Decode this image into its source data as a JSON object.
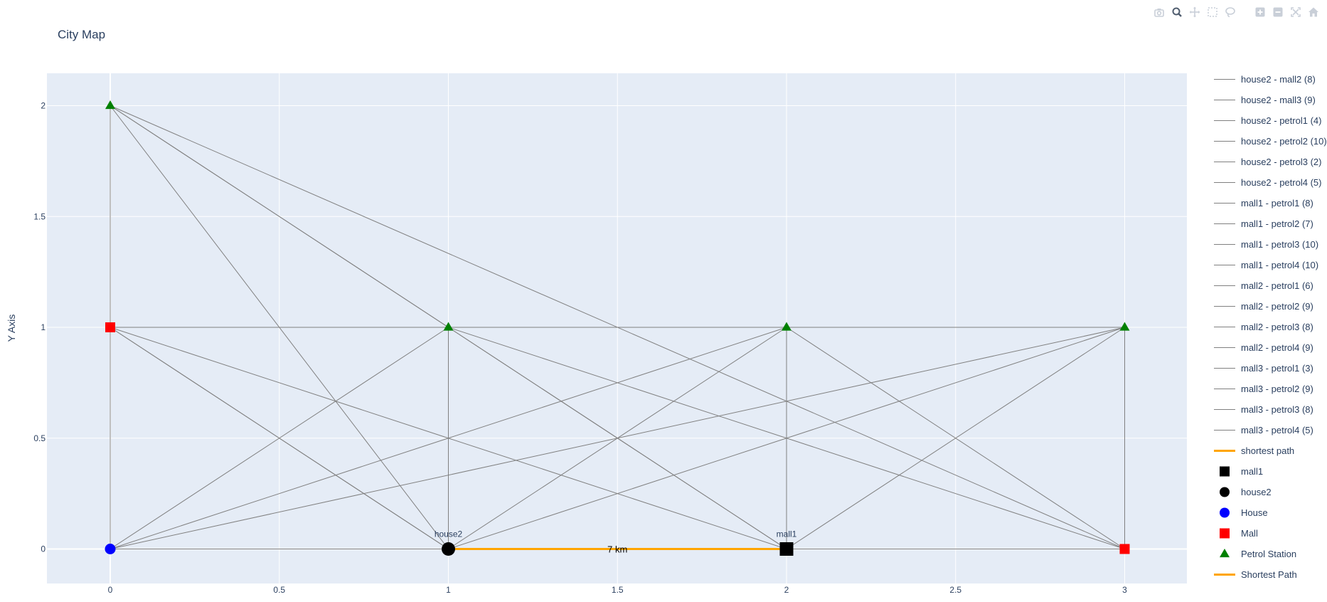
{
  "title": "City Map",
  "chart_data": {
    "type": "scatter",
    "title": "City Map",
    "xlabel": "",
    "ylabel": "Y Axis",
    "xlim": [
      -0.18,
      3.18
    ],
    "ylim": [
      -0.155,
      2.145
    ],
    "x_ticks": [
      0,
      0.5,
      1,
      1.5,
      2,
      2.5,
      3
    ],
    "x_tick_labels": [
      "0",
      "0.5",
      "1",
      "1.5",
      "2",
      "2.5",
      "3"
    ],
    "y_ticks": [
      0,
      0.5,
      1,
      1.5,
      2
    ],
    "y_tick_labels": [
      "0",
      "0.5",
      "1",
      "1.5",
      "2"
    ],
    "grid": true,
    "legend_position": "right",
    "background_color": "#e5ecf6",
    "edge_color": "#808080",
    "edges": [
      {
        "x": [
          1,
          2
        ],
        "y": [
          0,
          0
        ],
        "label": "house2 - mall2 (8)"
      },
      {
        "x": [
          1,
          0
        ],
        "y": [
          0,
          1
        ],
        "label": "house2 - mall3 (9)"
      },
      {
        "x": [
          1,
          0
        ],
        "y": [
          0,
          2
        ],
        "label": "house2 - petrol1 (4)"
      },
      {
        "x": [
          1,
          1
        ],
        "y": [
          0,
          1
        ],
        "label": "house2 - petrol2 (10)"
      },
      {
        "x": [
          1,
          2
        ],
        "y": [
          0,
          1
        ],
        "label": "house2 - petrol3 (2)"
      },
      {
        "x": [
          1,
          3
        ],
        "y": [
          0,
          1
        ],
        "label": "house2 - petrol4 (5)"
      },
      {
        "x": [
          2,
          0
        ],
        "y": [
          0,
          2
        ],
        "label": "mall1 - petrol1 (8)"
      },
      {
        "x": [
          2,
          1
        ],
        "y": [
          0,
          1
        ],
        "label": "mall1 - petrol2 (7)"
      },
      {
        "x": [
          2,
          2
        ],
        "y": [
          0,
          1
        ],
        "label": "mall1 - petrol3 (10)"
      },
      {
        "x": [
          2,
          3
        ],
        "y": [
          0,
          1
        ],
        "label": "mall1 - petrol4 (10)"
      },
      {
        "x": [
          3,
          0
        ],
        "y": [
          0,
          2
        ],
        "label": "mall2 - petrol1 (6)"
      },
      {
        "x": [
          3,
          1
        ],
        "y": [
          0,
          1
        ],
        "label": "mall2 - petrol2 (9)"
      },
      {
        "x": [
          3,
          2
        ],
        "y": [
          0,
          1
        ],
        "label": "mall2 - petrol3 (8)"
      },
      {
        "x": [
          3,
          3
        ],
        "y": [
          0,
          1
        ],
        "label": "mall2 - petrol4 (9)"
      },
      {
        "x": [
          0,
          0
        ],
        "y": [
          1,
          2
        ],
        "label": "mall3 - petrol1 (3)"
      },
      {
        "x": [
          0,
          1
        ],
        "y": [
          1,
          1
        ],
        "label": "mall3 - petrol2 (9)"
      },
      {
        "x": [
          0,
          2
        ],
        "y": [
          1,
          1
        ],
        "label": "mall3 - petrol3 (8)"
      },
      {
        "x": [
          0,
          3
        ],
        "y": [
          1,
          1
        ],
        "label": "mall3 - petrol4 (5)"
      }
    ],
    "extra_edges": [
      {
        "x": [
          0,
          1
        ],
        "y": [
          0,
          0
        ]
      },
      {
        "x": [
          2,
          3
        ],
        "y": [
          0,
          0
        ]
      },
      {
        "x": [
          0,
          1
        ],
        "y": [
          0,
          1
        ]
      },
      {
        "x": [
          0,
          2
        ],
        "y": [
          0,
          1
        ]
      },
      {
        "x": [
          0,
          3
        ],
        "y": [
          0,
          1
        ]
      },
      {
        "x": [
          0,
          0
        ],
        "y": [
          0,
          1
        ]
      },
      {
        "x": [
          1,
          0
        ],
        "y": [
          1,
          2
        ]
      },
      {
        "x": [
          1,
          0
        ],
        "y": [
          0,
          1
        ]
      },
      {
        "x": [
          0,
          2
        ],
        "y": [
          1,
          0
        ]
      }
    ],
    "shortest_path": {
      "x": [
        1,
        2
      ],
      "y": [
        0,
        0
      ],
      "color": "#FFA500",
      "label": "shortest path",
      "annotation": "7 km",
      "annotation_x": 1.5,
      "annotation_y": 0
    },
    "highlight_nodes": [
      {
        "name": "mall1",
        "x": 2,
        "y": 0,
        "symbol": "square",
        "color": "#000000",
        "label": "mall1"
      },
      {
        "name": "house2",
        "x": 1,
        "y": 0,
        "symbol": "circle",
        "color": "#000000",
        "label": "house2"
      }
    ],
    "node_groups": [
      {
        "name": "House",
        "symbol": "circle",
        "color": "#0000FF",
        "points": [
          [
            0,
            0
          ]
        ]
      },
      {
        "name": "Mall",
        "symbol": "square",
        "color": "#FF0000",
        "points": [
          [
            3,
            0
          ],
          [
            0,
            1
          ]
        ]
      },
      {
        "name": "Petrol Station",
        "symbol": "triangle-up",
        "color": "#008000",
        "points": [
          [
            0,
            2
          ],
          [
            1,
            1
          ],
          [
            2,
            1
          ],
          [
            3,
            1
          ]
        ]
      }
    ],
    "legend": [
      {
        "label": "house2 - mall2 (8)",
        "kind": "line",
        "color": "#808080"
      },
      {
        "label": "house2 - mall3 (9)",
        "kind": "line",
        "color": "#808080"
      },
      {
        "label": "house2 - petrol1 (4)",
        "kind": "line",
        "color": "#808080"
      },
      {
        "label": "house2 - petrol2 (10)",
        "kind": "line",
        "color": "#808080"
      },
      {
        "label": "house2 - petrol3 (2)",
        "kind": "line",
        "color": "#808080"
      },
      {
        "label": "house2 - petrol4 (5)",
        "kind": "line",
        "color": "#808080"
      },
      {
        "label": "mall1 - petrol1 (8)",
        "kind": "line",
        "color": "#808080"
      },
      {
        "label": "mall1 - petrol2 (7)",
        "kind": "line",
        "color": "#808080"
      },
      {
        "label": "mall1 - petrol3 (10)",
        "kind": "line",
        "color": "#808080"
      },
      {
        "label": "mall1 - petrol4 (10)",
        "kind": "line",
        "color": "#808080"
      },
      {
        "label": "mall2 - petrol1 (6)",
        "kind": "line",
        "color": "#808080"
      },
      {
        "label": "mall2 - petrol2 (9)",
        "kind": "line",
        "color": "#808080"
      },
      {
        "label": "mall2 - petrol3 (8)",
        "kind": "line",
        "color": "#808080"
      },
      {
        "label": "mall2 - petrol4 (9)",
        "kind": "line",
        "color": "#808080"
      },
      {
        "label": "mall3 - petrol1 (3)",
        "kind": "line",
        "color": "#808080"
      },
      {
        "label": "mall3 - petrol2 (9)",
        "kind": "line",
        "color": "#808080"
      },
      {
        "label": "mall3 - petrol3 (8)",
        "kind": "line",
        "color": "#808080"
      },
      {
        "label": "mall3 - petrol4 (5)",
        "kind": "line",
        "color": "#808080"
      },
      {
        "label": "shortest path",
        "kind": "line-thick",
        "color": "#FFA500"
      },
      {
        "label": "mall1",
        "kind": "square",
        "color": "#000000"
      },
      {
        "label": "house2",
        "kind": "circle",
        "color": "#000000"
      },
      {
        "label": "House",
        "kind": "circle",
        "color": "#0000FF"
      },
      {
        "label": "Mall",
        "kind": "square",
        "color": "#FF0000"
      },
      {
        "label": "Petrol Station",
        "kind": "triangle-up",
        "color": "#008000"
      },
      {
        "label": "Shortest Path",
        "kind": "line-thick",
        "color": "#FFA500"
      }
    ]
  },
  "modebar": {
    "buttons": [
      {
        "name": "camera-icon",
        "glyph": "camera"
      },
      {
        "name": "zoom-icon",
        "glyph": "zoom"
      },
      {
        "name": "pan-icon",
        "glyph": "pan"
      },
      {
        "name": "box-select-icon",
        "glyph": "box"
      },
      {
        "name": "lasso-select-icon",
        "glyph": "lasso"
      },
      {
        "name": "zoom-in-icon",
        "glyph": "plus"
      },
      {
        "name": "zoom-out-icon",
        "glyph": "minus"
      },
      {
        "name": "autoscale-icon",
        "glyph": "autoscale"
      },
      {
        "name": "reset-axes-icon",
        "glyph": "home"
      }
    ]
  }
}
